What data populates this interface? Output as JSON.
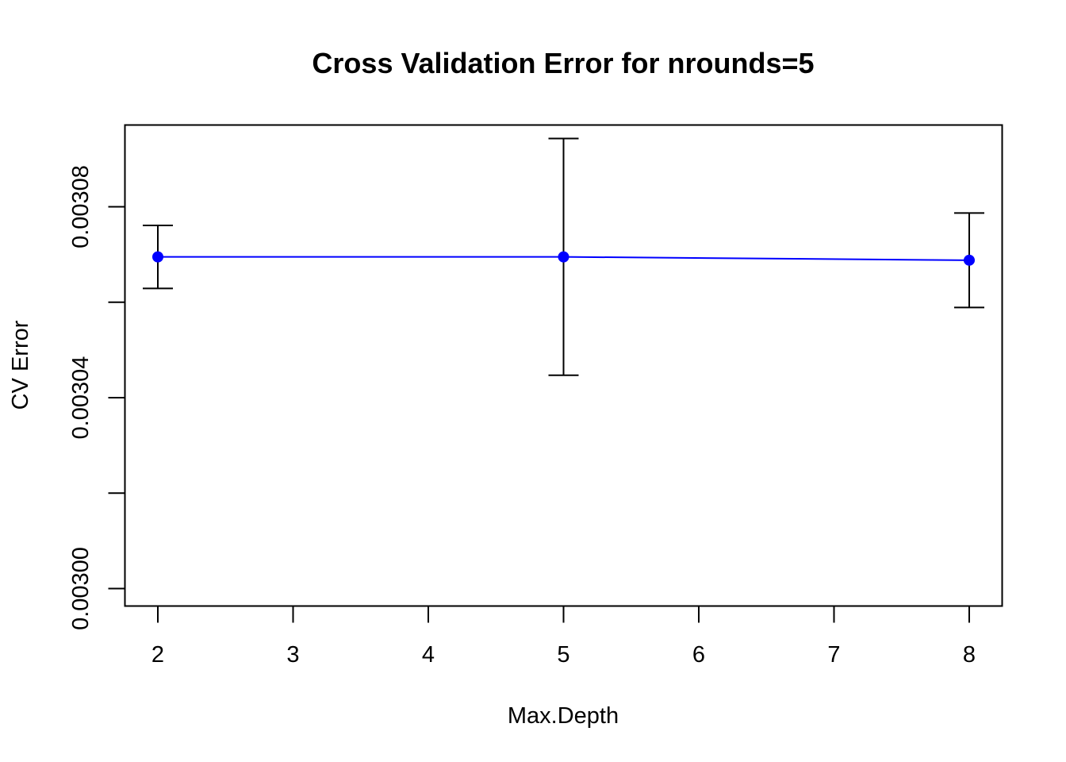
{
  "chart_data": {
    "type": "line",
    "title": "Cross Validation Error for nrounds=5",
    "xlabel": "Max.Depth",
    "ylabel": "CV Error",
    "xlim": [
      1.76,
      8.24
    ],
    "ylim": [
      0.029996,
      0.003097
    ],
    "x_ticks": [
      2,
      3,
      4,
      5,
      6,
      7,
      8
    ],
    "x_tick_labels": [
      "2",
      "3",
      "4",
      "5",
      "6",
      "7",
      "8"
    ],
    "y_ticks": [
      0.003,
      0.00302,
      0.00304,
      0.00306,
      0.00308
    ],
    "y_tick_labels": [
      "0.00300",
      "",
      "0.00304",
      "",
      "0.00308"
    ],
    "grid": false,
    "legend": "none",
    "series": [
      {
        "x": [
          2,
          5,
          8
        ],
        "y": [
          0.0030695,
          0.0030695,
          0.0030688
        ],
        "err_low": [
          0.0030629,
          0.0030447,
          0.0030589
        ],
        "err_high": [
          0.0030761,
          0.0030943,
          0.0030787
        ],
        "color": "#0000ff",
        "marker": "filled-circle"
      }
    ],
    "colors": {
      "line": "#0000ff",
      "points": "#0000ff",
      "error_bars": "#000000",
      "axes": "#000000"
    }
  }
}
